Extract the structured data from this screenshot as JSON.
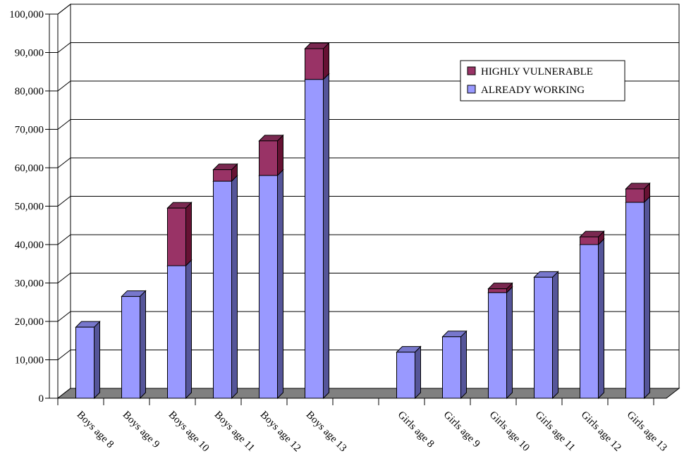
{
  "chart_data": {
    "type": "bar",
    "stacked": true,
    "three_d": true,
    "title": "",
    "xlabel": "",
    "ylabel": "",
    "ylim": [
      0,
      100000
    ],
    "yticks": [
      0,
      10000,
      20000,
      30000,
      40000,
      50000,
      60000,
      70000,
      80000,
      90000,
      100000
    ],
    "ytick_labels": [
      "0",
      "10,000",
      "20,000",
      "30,000",
      "40,000",
      "50,000",
      "60,000",
      "70,000",
      "80,000",
      "90,000",
      "100,000"
    ],
    "grid": true,
    "legend_position": "top-right",
    "categories": [
      "Boys age 8",
      "Boys age 9",
      "Boys age 10",
      "Boys age 11",
      "Boys age 12",
      "Boys age 13",
      "",
      "Girls age 8",
      "Girls age 9",
      "Girls age 10",
      "Girls age 11",
      "Girls age 12",
      "Girls age 13"
    ],
    "series": [
      {
        "name": "ALREADY WORKING",
        "color": "#9999ff",
        "values": [
          18500,
          26500,
          34500,
          56500,
          58000,
          83000,
          null,
          12000,
          16000,
          27500,
          31500,
          40000,
          51000
        ]
      },
      {
        "name": "HIGHLY VULNERABLE",
        "color": "#993366",
        "values": [
          0,
          0,
          15000,
          3000,
          9000,
          8000,
          null,
          0,
          0,
          1000,
          0,
          2000,
          3500
        ]
      }
    ]
  }
}
